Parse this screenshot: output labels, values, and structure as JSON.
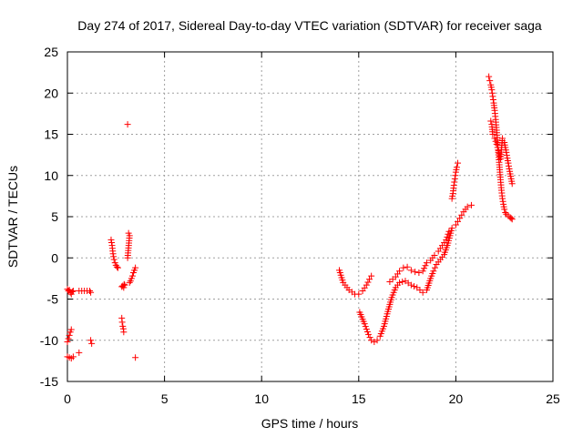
{
  "chart_data": {
    "type": "scatter",
    "title": "Day 274 of 2017, Sidereal Day-to-day VTEC variation (SDTVAR) for receiver saga",
    "xlabel": "GPS time / hours",
    "ylabel": "SDTVAR / TECUs",
    "xlim": [
      0,
      25
    ],
    "ylim": [
      -15,
      25
    ],
    "xticks": [
      0,
      5,
      10,
      15,
      20,
      25
    ],
    "yticks": [
      -15,
      -10,
      -5,
      0,
      5,
      10,
      15,
      20,
      25
    ],
    "grid": true,
    "marker": "+",
    "color": "#ff0000",
    "segments": [
      {
        "x": [
          0.0,
          0.05,
          0.1,
          0.15,
          0.2,
          0.25,
          0.3
        ],
        "y": [
          -3.8,
          -4.0,
          -3.9,
          -4.2,
          -4.4,
          -4.1,
          -4.0
        ]
      },
      {
        "x": [
          0.0,
          0.05,
          0.1,
          0.15,
          0.2
        ],
        "y": [
          -10.2,
          -9.8,
          -9.4,
          -9.0,
          -8.7
        ]
      },
      {
        "x": [
          0.0,
          0.1,
          0.2,
          0.3
        ],
        "y": [
          -12.0,
          -12.1,
          -12.2,
          -12.0
        ]
      },
      {
        "x": [
          0.6,
          1.15,
          1.2,
          1.2,
          1.25
        ],
        "y": [
          -4.0,
          -4.0,
          -4.2,
          -10.0,
          -10.4
        ]
      },
      {
        "x": [
          0.6
        ],
        "y": [
          -11.5
        ]
      },
      {
        "x": [
          2.25,
          2.3,
          2.35,
          2.4,
          2.45,
          2.5,
          2.55,
          2.6
        ],
        "y": [
          2.2,
          1.5,
          0.5,
          -0.2,
          -0.6,
          -0.9,
          -1.1,
          -1.2
        ]
      },
      {
        "x": [
          2.8,
          2.82,
          2.85,
          2.88,
          2.9,
          2.92
        ],
        "y": [
          -7.3,
          -7.8,
          -8.3,
          -8.6,
          -9.0,
          -3.2
        ]
      },
      {
        "x": [
          2.8,
          2.85,
          2.9,
          2.95
        ],
        "y": [
          -3.5,
          -3.4,
          -3.6,
          -3.3
        ]
      },
      {
        "x": [
          3.1,
          3.15,
          3.2,
          3.1
        ],
        "y": [
          16.2,
          3.0,
          2.7,
          0.0
        ]
      },
      {
        "x": [
          3.2,
          3.25,
          3.3,
          3.35,
          3.4,
          3.45,
          3.5
        ],
        "y": [
          -3.0,
          -2.8,
          -2.5,
          -2.2,
          -1.8,
          -1.5,
          -1.2
        ]
      },
      {
        "x": [
          3.5
        ],
        "y": [
          -12.1
        ]
      },
      {
        "x": [
          14.0,
          14.2,
          14.5,
          14.8,
          15.0,
          15.2,
          15.4,
          15.55,
          15.65
        ],
        "y": [
          -1.5,
          -3.0,
          -3.9,
          -4.4,
          -4.4,
          -4.0,
          -3.3,
          -2.6,
          -2.2
        ]
      },
      {
        "x": [
          15.05,
          15.3,
          15.5,
          15.65,
          15.8,
          15.95,
          16.1,
          16.3,
          16.5,
          16.7,
          16.9,
          17.1,
          17.4,
          17.7,
          18.0,
          18.3,
          18.5,
          18.7,
          18.85,
          19.0,
          19.2,
          19.4,
          19.6,
          19.8,
          20.0,
          20.2,
          20.4,
          20.6,
          20.8
        ],
        "y": [
          -6.6,
          -8.0,
          -9.3,
          -10.0,
          -10.2,
          -10.0,
          -9.5,
          -8.3,
          -6.5,
          -4.8,
          -3.6,
          -3.0,
          -2.8,
          -3.3,
          -3.6,
          -4.2,
          -3.9,
          -2.5,
          -1.6,
          -0.8,
          -0.2,
          0.4,
          1.8,
          3.6,
          4.0,
          4.8,
          5.6,
          6.2,
          6.4
        ]
      },
      {
        "x": [
          16.6,
          16.9,
          17.1,
          17.3,
          17.5,
          17.7,
          17.9,
          18.1,
          18.3,
          18.5,
          18.7,
          18.9,
          19.1,
          19.3,
          19.5,
          19.65
        ],
        "y": [
          -2.9,
          -2.3,
          -1.6,
          -1.2,
          -1.1,
          -1.5,
          -1.7,
          -1.8,
          -1.6,
          -0.6,
          -0.3,
          0.3,
          0.8,
          1.5,
          2.2,
          3.2
        ]
      },
      {
        "x": [
          19.8,
          19.85,
          19.9,
          19.95,
          20.0,
          20.05,
          20.1
        ],
        "y": [
          7.2,
          7.8,
          8.8,
          9.6,
          10.4,
          11.0,
          11.5
        ]
      },
      {
        "x": [
          21.7,
          21.75,
          21.8,
          21.85,
          21.9,
          21.95,
          22.0,
          22.05,
          22.1,
          22.15,
          22.2,
          22.25,
          22.3,
          22.35,
          22.4,
          22.45,
          22.5,
          22.55,
          22.6,
          22.7,
          22.8,
          22.85,
          22.9
        ],
        "y": [
          22.0,
          21.5,
          21.0,
          20.4,
          19.6,
          18.8,
          17.9,
          16.8,
          15.5,
          14.0,
          12.5,
          11.0,
          9.5,
          8.2,
          7.2,
          6.5,
          5.9,
          5.5,
          5.3,
          5.1,
          4.9,
          4.8,
          4.7
        ]
      },
      {
        "x": [
          21.8,
          21.85,
          21.9,
          22.0,
          22.1,
          22.2,
          22.3,
          22.4,
          22.5,
          22.55,
          22.6,
          22.65,
          22.7,
          22.75,
          22.8,
          22.85,
          22.9
        ],
        "y": [
          16.6,
          16.2,
          15.0,
          14.5,
          13.8,
          13.0,
          12.0,
          14.5,
          14.0,
          13.4,
          12.8,
          12.1,
          11.5,
          10.8,
          10.2,
          9.6,
          9.0
        ]
      }
    ]
  }
}
